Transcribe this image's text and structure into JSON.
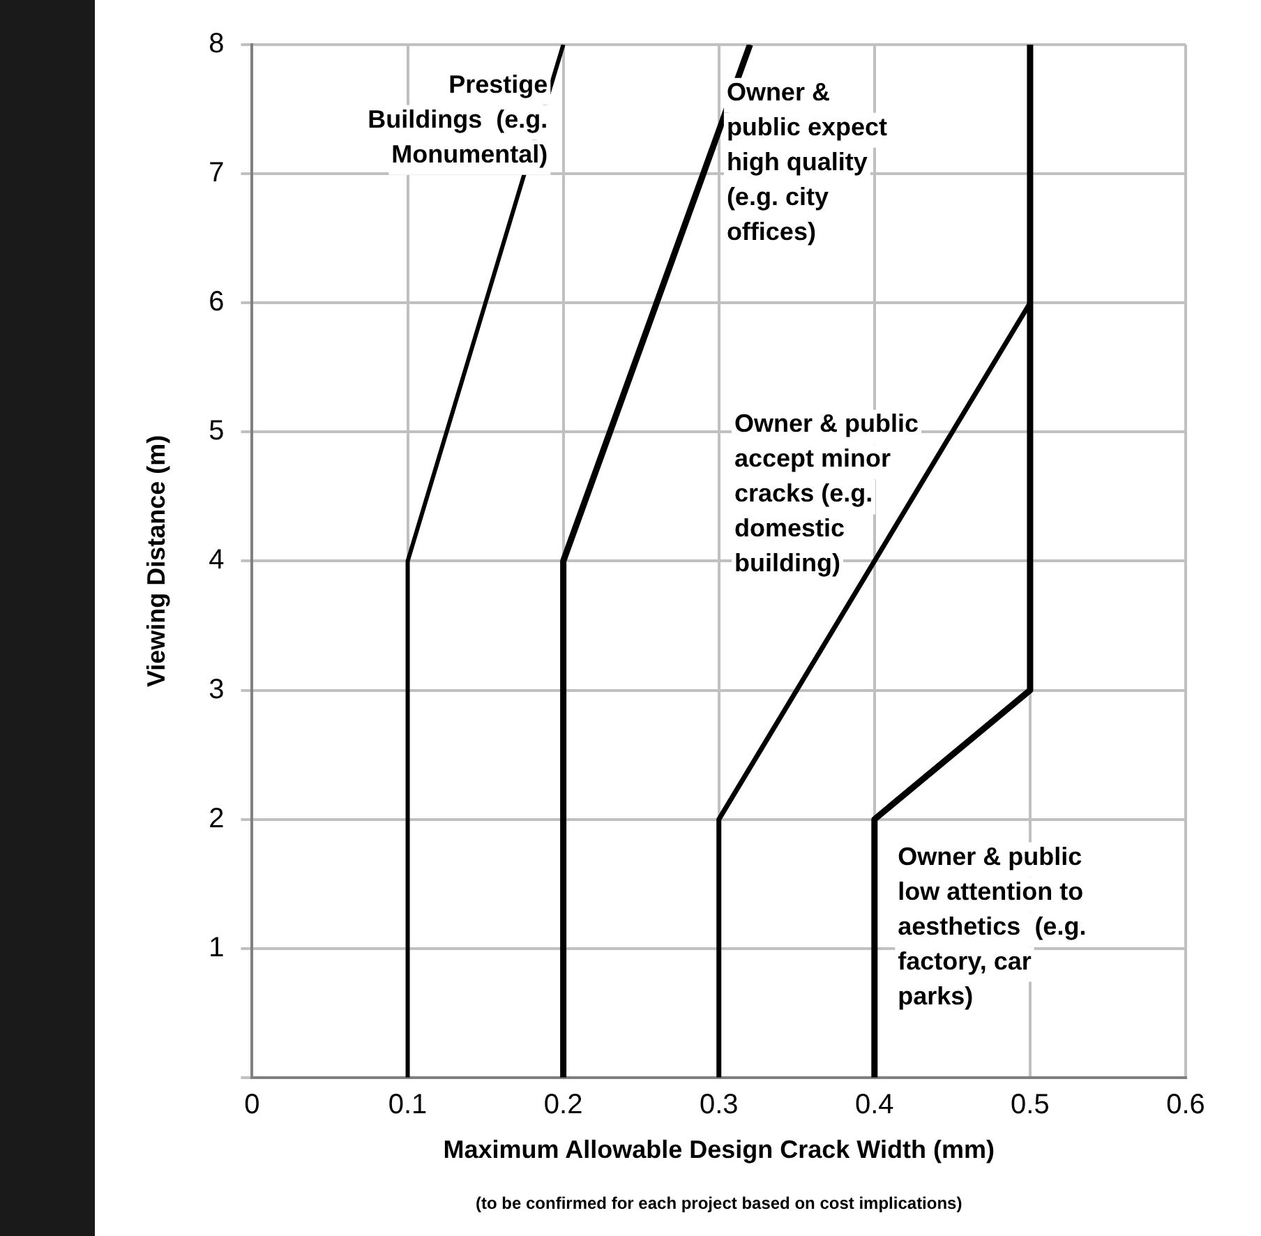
{
  "chart_data": {
    "type": "line",
    "xlabel": "Maximum Allowable Design Crack Width (mm)",
    "ylabel": "Viewing Distance (m)",
    "xlim": [
      0,
      0.6
    ],
    "xticks": [
      0,
      0.1,
      0.2,
      0.3,
      0.4,
      0.5,
      0.6
    ],
    "ylim": [
      0,
      8
    ],
    "yticks": [
      {
        "value": 0,
        "label": null
      },
      1,
      2,
      3,
      4,
      5,
      6,
      7,
      8
    ],
    "grid": true,
    "legend": false,
    "marker": "none",
    "line_style": "solid",
    "series": [
      {
        "color": "#000000",
        "x": [
          0.1,
          0.1,
          0.2
        ],
        "values": [
          0,
          4,
          8
        ]
      },
      {
        "color": "#000000",
        "x": [
          0.2,
          0.2,
          0.32
        ],
        "values": [
          0,
          4,
          8
        ]
      },
      {
        "color": "#000000",
        "x": [
          0.3,
          0.3,
          0.5
        ],
        "values": [
          0,
          2,
          6
        ]
      },
      {
        "color": "#000000",
        "x": [
          0.4,
          0.4,
          0.5,
          0.5,
          0.5
        ],
        "values": [
          0,
          2,
          3,
          6,
          8
        ]
      }
    ],
    "annotations": [
      "Prestige\nBuildings  (e.g.\nMonumental)",
      "Owner &\npublic expect\nhigh quality\n(e.g. city\noffices)",
      "Owner & public\naccept minor\ncracks (e.g.\ndomestic\nbuilding)",
      "Owner & public\nlow attention to\naesthetics  (e.g.\nfactory, car\nparks)",
      "(to be confirmed for each project based on cost implications)"
    ]
  }
}
